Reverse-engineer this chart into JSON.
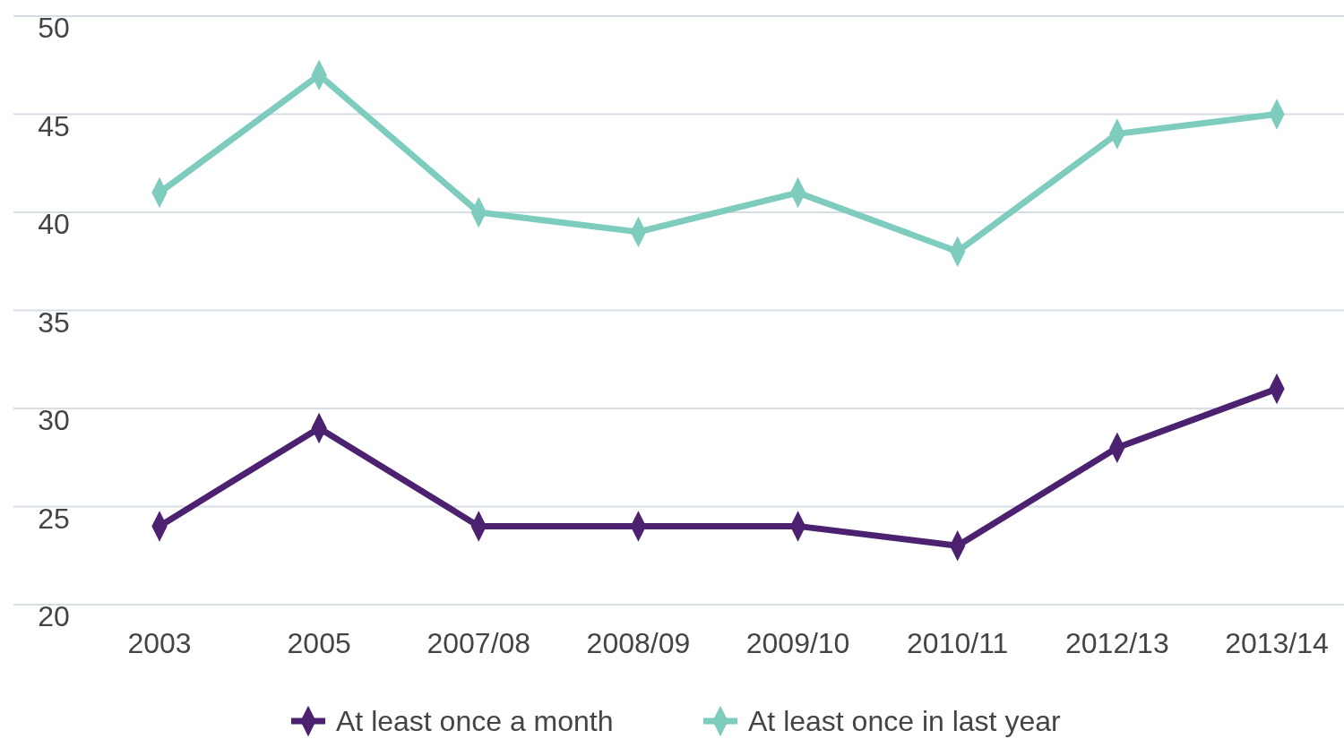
{
  "chart_data": {
    "type": "line",
    "categories": [
      "2003",
      "2005",
      "2007/08",
      "2008/09",
      "2009/10",
      "2010/11",
      "2012/13",
      "2013/14"
    ],
    "series": [
      {
        "name": "At least once a month",
        "color": "#4b2170",
        "values": [
          24,
          29,
          24,
          24,
          24,
          23,
          28,
          31
        ]
      },
      {
        "name": "At least once in last year",
        "color": "#7dccbe",
        "values": [
          41,
          47,
          40,
          39,
          41,
          38,
          44,
          45
        ]
      }
    ],
    "ylim": [
      20,
      50
    ],
    "yticks": [
      20,
      25,
      30,
      35,
      40,
      45,
      50
    ],
    "grid": "y",
    "legend": "bottom",
    "marker": "diamond",
    "line_style": "solid"
  }
}
